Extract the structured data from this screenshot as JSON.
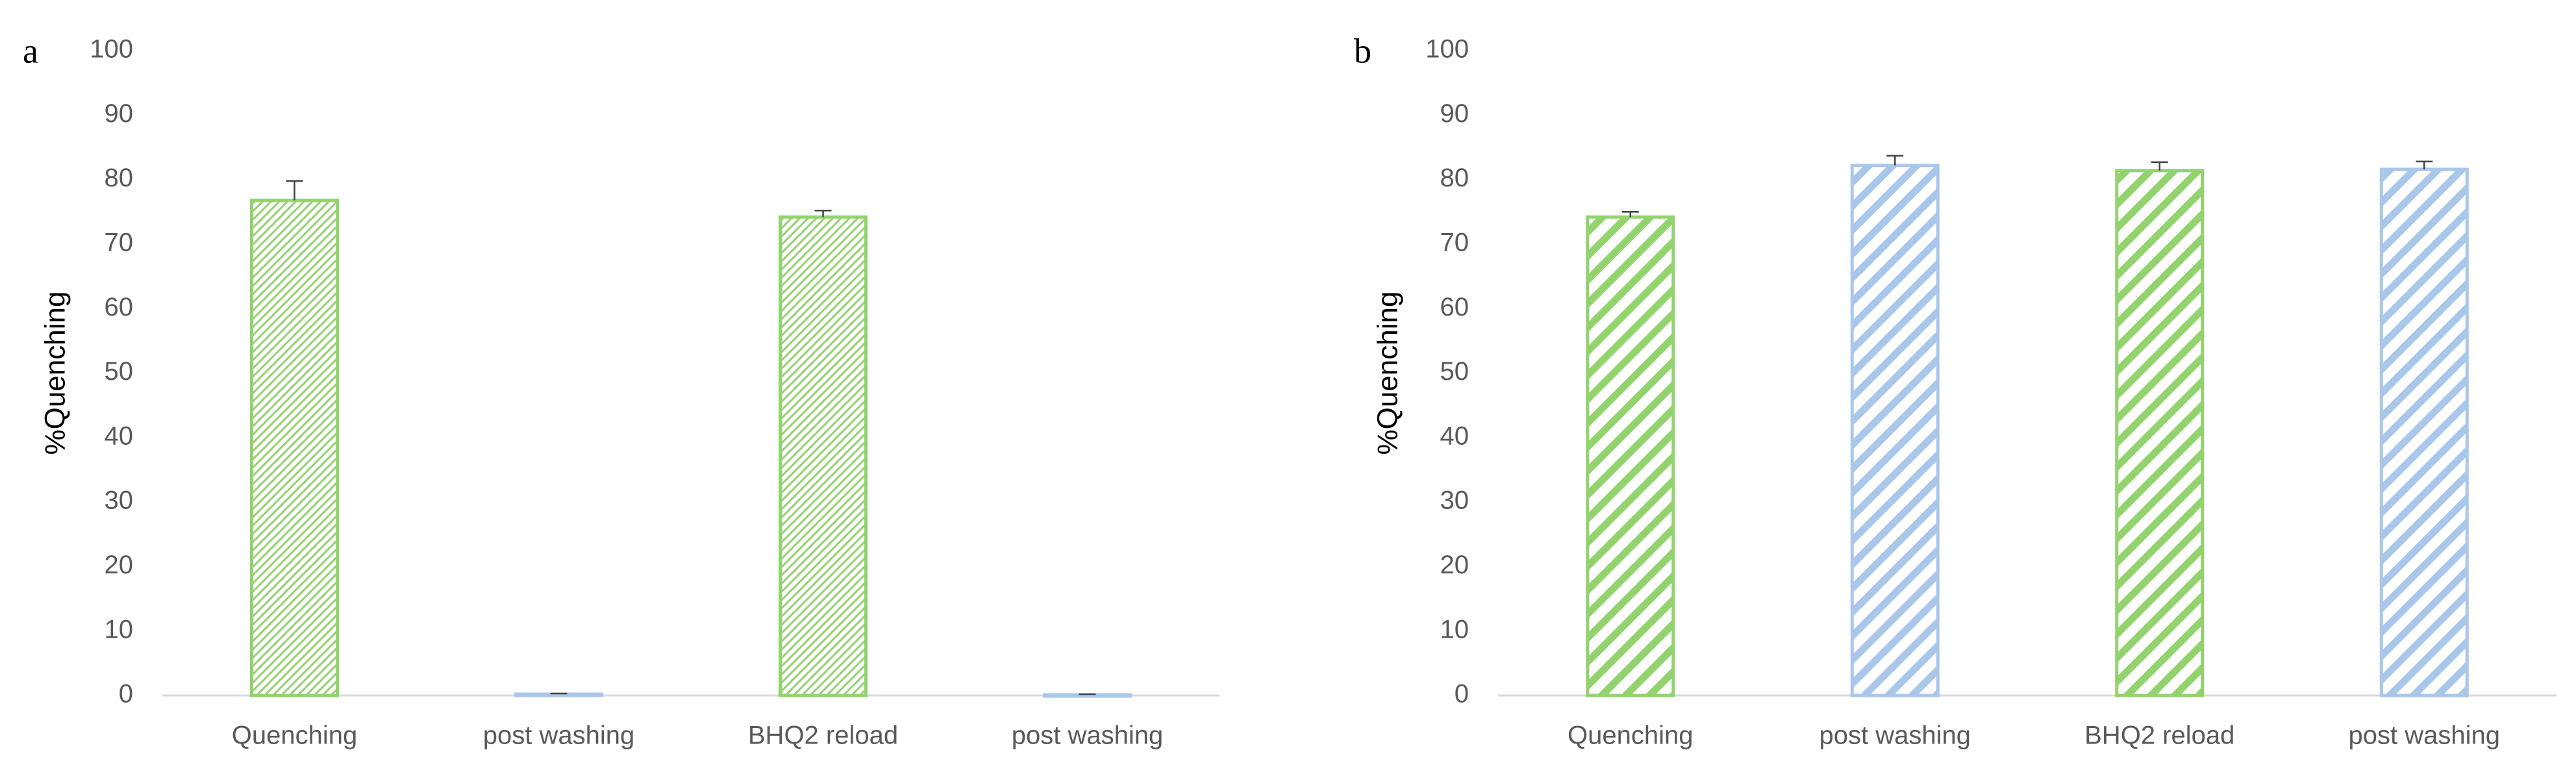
{
  "chart_data": [
    {
      "type": "bar",
      "panel": "a",
      "y_label": "%Quenching",
      "categories": [
        "Quenching",
        "post washing",
        "BHQ2 reload",
        "post washing"
      ],
      "values": [
        76.8,
        0.2,
        74.2,
        0.1
      ],
      "errors": [
        3.0,
        0.1,
        1.0,
        0.1
      ],
      "colors": [
        "#92d36e",
        "#a9c7ea",
        "#92d36e",
        "#a9c7ea"
      ],
      "ylim": [
        0,
        100
      ],
      "yticks": [
        0,
        10,
        20,
        30,
        40,
        50,
        60,
        70,
        80,
        90,
        100
      ]
    },
    {
      "type": "bar",
      "panel": "b",
      "y_label": "%Quenching",
      "categories": [
        "Quenching",
        "post washing",
        "BHQ2 reload",
        "post washing"
      ],
      "values": [
        74.2,
        82.2,
        81.4,
        81.6
      ],
      "errors": [
        0.8,
        1.5,
        1.3,
        1.2
      ],
      "colors": [
        "#92d36e",
        "#a9c7ea",
        "#92d36e",
        "#a9c7ea"
      ],
      "ylim": [
        0,
        100
      ],
      "yticks": [
        0,
        10,
        20,
        30,
        40,
        50,
        60,
        70,
        80,
        90,
        100
      ]
    }
  ]
}
